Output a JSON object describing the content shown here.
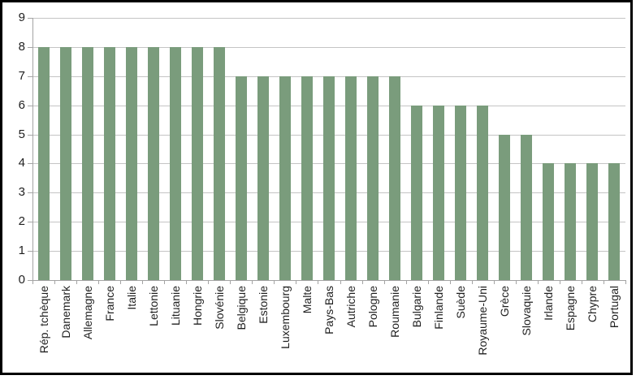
{
  "chart_data": {
    "type": "bar",
    "title": "",
    "xlabel": "",
    "ylabel": "",
    "categories": [
      "Rép. tchèque",
      "Danemark",
      "Allemagne",
      "France",
      "Italie",
      "Lettonie",
      "Lituanie",
      "Hongrie",
      "Slovénie",
      "Belgique",
      "Estonie",
      "Luxembourg",
      "Malte",
      "Pays-Bas",
      "Autriche",
      "Pologne",
      "Roumanie",
      "Bulgarie",
      "Finlande",
      "Suède",
      "Royaume-Uni",
      "Grèce",
      "Slovaquie",
      "Irlande",
      "Espagne",
      "Chypre",
      "Portugal"
    ],
    "values": [
      8,
      8,
      8,
      8,
      8,
      8,
      8,
      8,
      8,
      7,
      7,
      7,
      7,
      7,
      7,
      7,
      7,
      6,
      6,
      6,
      6,
      5,
      5,
      4,
      4,
      4,
      4
    ],
    "ylim": [
      0,
      9
    ],
    "ytick_step": 1,
    "yticks": [
      "0",
      "1",
      "2",
      "3",
      "4",
      "5",
      "6",
      "7",
      "8",
      "9"
    ],
    "grid": true,
    "legend": false,
    "colors": {
      "bar": "#7a9c7c",
      "gridline": "#c4c4c4",
      "axis": "#a3a3a3",
      "text": "#1f1f1f",
      "frame_border": "#000000",
      "background": "#ffffff"
    }
  }
}
